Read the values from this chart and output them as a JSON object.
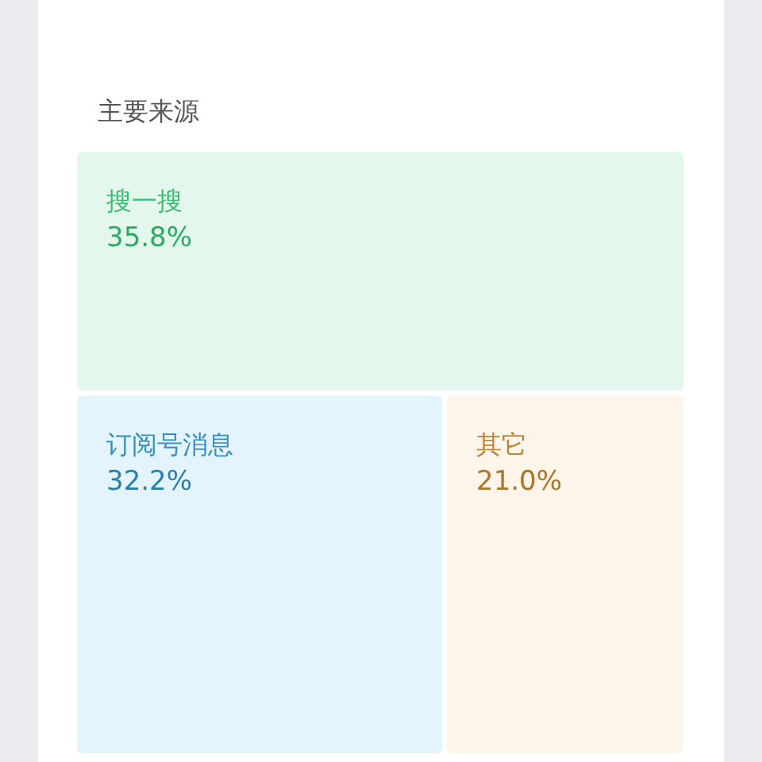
{
  "chart_data": {
    "type": "other",
    "title": "主要来源",
    "categories": [
      "搜一搜",
      "订阅号消息",
      "其它"
    ],
    "values": [
      35.8,
      32.2,
      21.0
    ],
    "value_labels": [
      "35.8%",
      "32.2%",
      "21.0%"
    ],
    "colors": [
      "#e4f7ec",
      "#e4f4fd",
      "#fdf5ea"
    ]
  }
}
